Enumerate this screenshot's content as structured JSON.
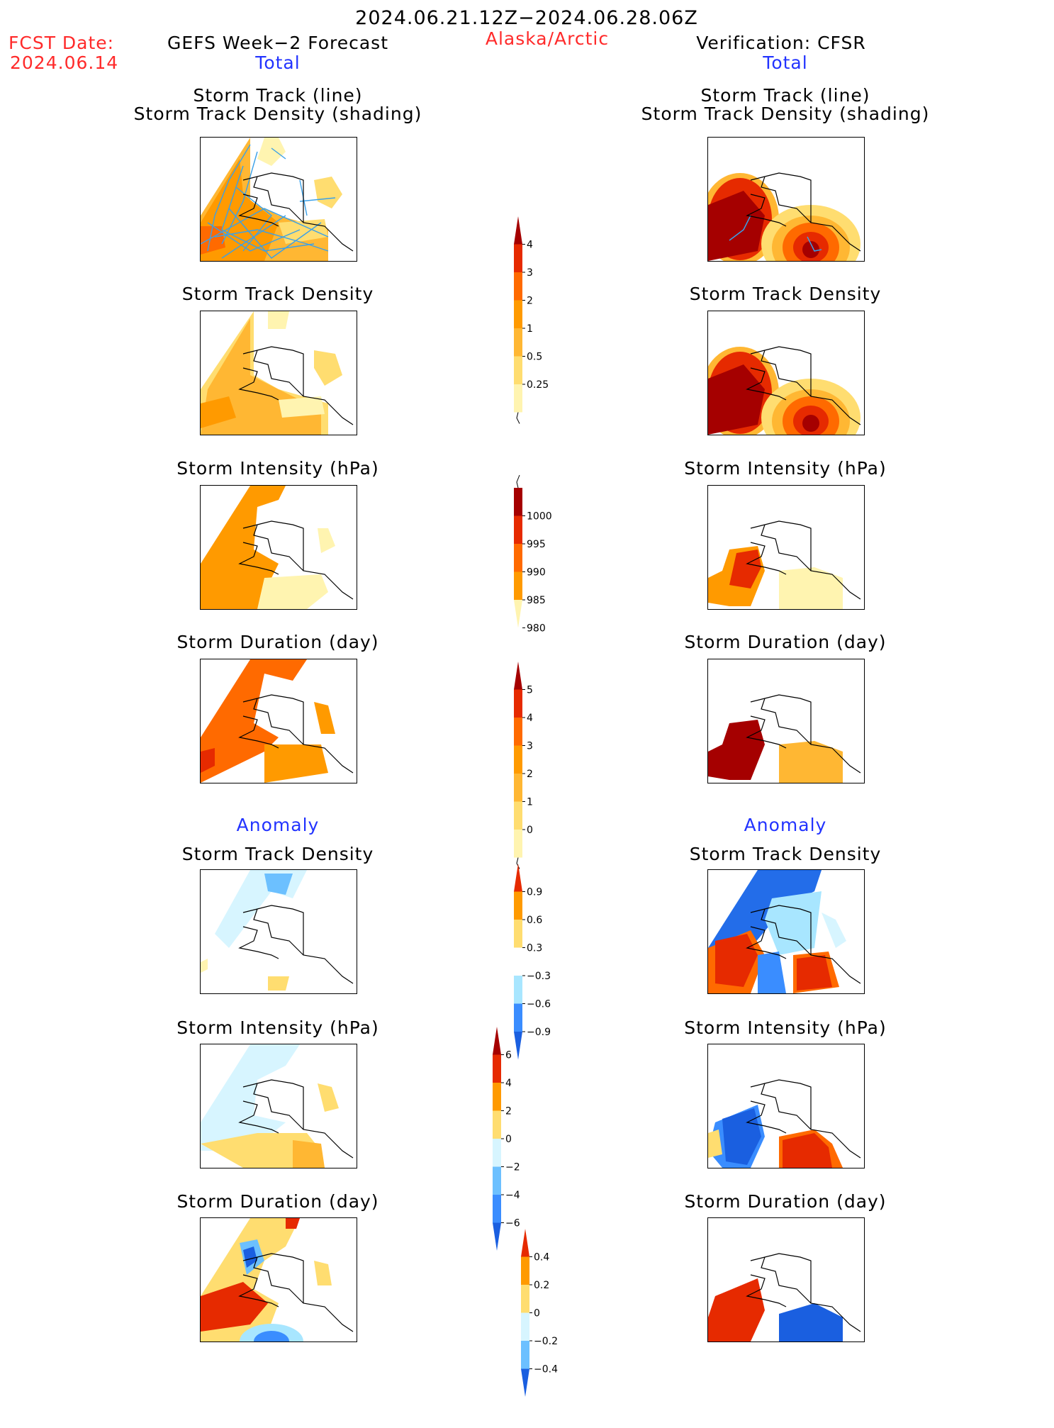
{
  "header": {
    "period": "2024.06.21.12Z−2024.06.28.06Z",
    "region": "Alaska/Arctic",
    "fcst_label": "FCST Date:",
    "fcst_date": "2024.06.14",
    "left_title": "GEFS Week−2 Forecast",
    "right_title": "Verification: CFSR",
    "total_label": "Total",
    "anomaly_label": "Anomaly"
  },
  "panel_titles": {
    "track_line": "Storm Track (line)",
    "track_shading": "Storm Track Density (shading)",
    "density": "Storm Track Density",
    "intensity": "Storm Intensity (hPa)",
    "duration": "Storm Duration (day)"
  },
  "colorbars": {
    "track_density": [
      "4",
      "3",
      "2",
      "1",
      "0.5",
      "0.25"
    ],
    "intensity": [
      "1000",
      "995",
      "990",
      "985",
      "980"
    ],
    "duration": [
      "5",
      "4",
      "3",
      "2",
      "1",
      "0"
    ],
    "density_anomaly": [
      "0.9",
      "0.6",
      "0.3",
      "−0.3",
      "−0.6",
      "−0.9"
    ],
    "intensity_anomaly": [
      "6",
      "4",
      "2",
      "0",
      "−2",
      "−4",
      "−6"
    ],
    "duration_anomaly": [
      "0.4",
      "0.2",
      "0",
      "−0.2",
      "−0.4"
    ]
  },
  "colors": {
    "warm": [
      "#fff4b0",
      "#ffdd70",
      "#ffb733",
      "#ff9a00",
      "#ff6a00",
      "#e62a00",
      "#a50000"
    ],
    "cool": [
      "#d7f5ff",
      "#a8e6ff",
      "#6cc0ff",
      "#3a8dff",
      "#1a5fe0"
    ],
    "track_line": "#3aa0e8"
  },
  "chart_data": {
    "type": "heatmap",
    "columns": [
      "GEFS Week−2 Forecast",
      "Verification: CFSR"
    ],
    "rows": [
      "Storm Track (line) / Storm Track Density (shading)",
      "Storm Track Density",
      "Storm Intensity (hPa)",
      "Storm Duration (day)",
      "Anomaly Storm Track Density",
      "Anomaly Storm Intensity (hPa)",
      "Anomaly Storm Duration (day)"
    ],
    "colorbar_levels": {
      "track_density": [
        0.25,
        0.5,
        1,
        2,
        3,
        4
      ],
      "intensity": [
        1000,
        995,
        990,
        985,
        980
      ],
      "duration": [
        0,
        1,
        2,
        3,
        4,
        5
      ],
      "density_anomaly": [
        -0.9,
        -0.6,
        -0.3,
        0.3,
        0.6,
        0.9
      ],
      "intensity_anomaly": [
        -6,
        -4,
        -2,
        0,
        2,
        4,
        6
      ],
      "duration_anomaly": [
        -0.4,
        -0.2,
        0,
        0.2,
        0.4
      ]
    }
  }
}
